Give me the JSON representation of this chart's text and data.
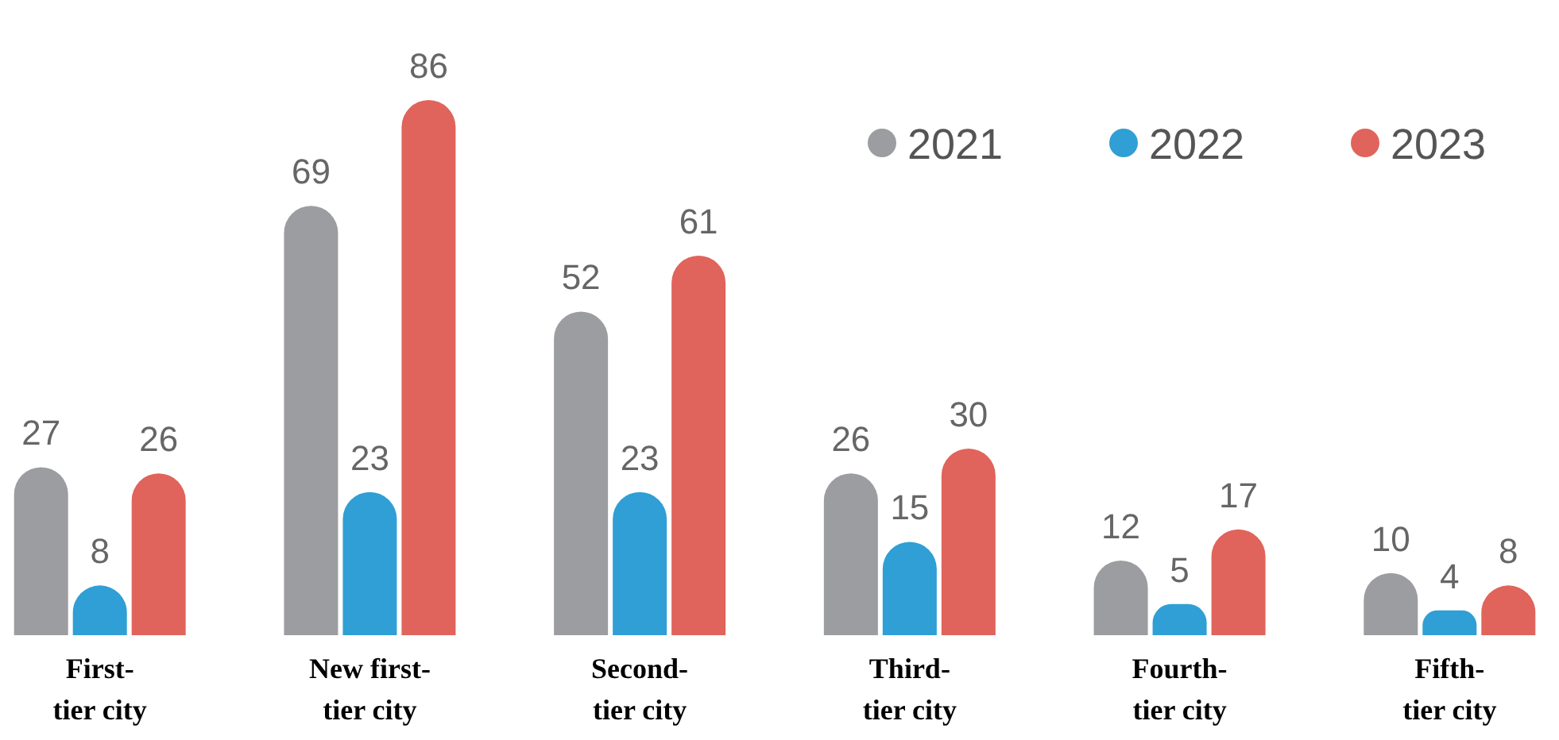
{
  "chart_data": {
    "type": "bar",
    "categories": [
      "First-tier city",
      "New first-tier city",
      "Second-tier city",
      "Third-tier city",
      "Fourth-tier city",
      "Fifth-tier city"
    ],
    "series": [
      {
        "name": "2021",
        "color": "#9c9da1",
        "values": [
          27,
          69,
          52,
          26,
          12,
          10
        ]
      },
      {
        "name": "2022",
        "color": "#2f9fd5",
        "values": [
          8,
          23,
          23,
          15,
          5,
          4
        ]
      },
      {
        "name": "2023",
        "color": "#e0645b",
        "values": [
          26,
          86,
          61,
          30,
          17,
          8
        ]
      }
    ],
    "relative": false,
    "data_labels": true,
    "legend": "top right"
  }
}
